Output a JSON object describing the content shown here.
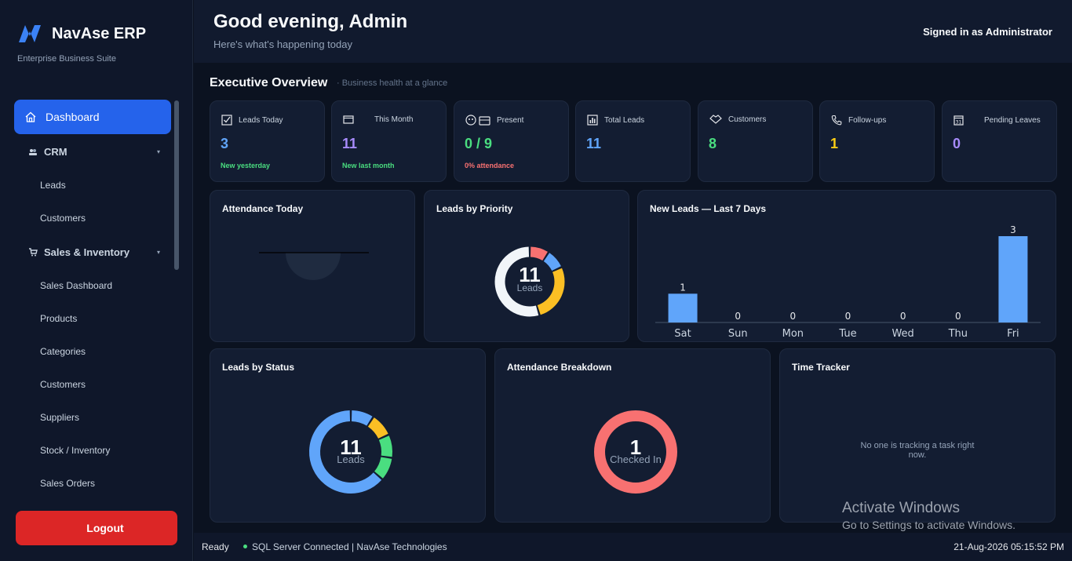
{
  "sidebar": {
    "brand_name": "NavAse ERP",
    "brand_sub": "Enterprise Business Suite",
    "active_item": "Dashboard",
    "crm": {
      "label": "CRM",
      "items": [
        "Leads",
        "Customers"
      ]
    },
    "sales": {
      "label": "Sales & Inventory",
      "items": [
        "Sales Dashboard",
        "Products",
        "Categories",
        "Customers",
        "Suppliers",
        "Stock / Inventory",
        "Sales Orders"
      ]
    },
    "logout_icon": "",
    "logout_label": "Logout"
  },
  "header": {
    "greeting": "Good evening, Admin",
    "subtitle": "Here's what's happening today",
    "signed_in": "Signed in as Administrator"
  },
  "overview": {
    "title": "Executive Overview",
    "subtitle": "· Business health at a glance"
  },
  "kpis": [
    {
      "icon": "checkbox-icon",
      "label": "Leads Today",
      "value": "3",
      "color": "#60a5fa",
      "sub": "New yesterday",
      "sub_color": "#4ade80"
    },
    {
      "icon": "calendar-icon",
      "label": "This Month",
      "value": "11",
      "color": "#a78bfa",
      "sub": "New last month",
      "sub_color": "#4ade80"
    },
    {
      "icon": "people-briefcase-icon",
      "label": "Present",
      "value": "0 / 9",
      "color": "#4ade80",
      "sub": "0% attendance",
      "sub_color": "#f87171"
    },
    {
      "icon": "bar-chart-icon",
      "label": "Total Leads",
      "value": "11",
      "color": "#60a5fa",
      "sub": "",
      "sub_color": ""
    },
    {
      "icon": "handshake-icon",
      "label": "Customers",
      "value": "8",
      "color": "#4ade80",
      "sub": "",
      "sub_color": ""
    },
    {
      "icon": "phone-icon",
      "label": "Follow-ups",
      "value": "1",
      "color": "#facc15",
      "sub": "",
      "sub_color": ""
    },
    {
      "icon": "calendar-31-icon",
      "label": "Pending Leaves",
      "value": "0",
      "color": "#a78bfa",
      "sub": "",
      "sub_color": ""
    }
  ],
  "cards": {
    "attendance_today": "Attendance Today",
    "leads_priority": "Leads by Priority",
    "new_leads": "New Leads — Last 7 Days",
    "leads_status": "Leads by Status",
    "attendance_breakdown": "Attendance Breakdown",
    "time_tracker": "Time Tracker",
    "time_tracker_empty": "No one is tracking a task right now."
  },
  "donuts": {
    "priority": {
      "center_value": "11",
      "center_label": "Leads"
    },
    "status": {
      "center_value": "11",
      "center_label": "Leads"
    },
    "attendance": {
      "center_value": "1",
      "center_label": "Checked In"
    }
  },
  "chart_data": [
    {
      "type": "bar",
      "title": "New Leads — Last 7 Days",
      "categories": [
        "Sat",
        "Sun",
        "Mon",
        "Tue",
        "Wed",
        "Thu",
        "Fri"
      ],
      "values": [
        1,
        0,
        0,
        0,
        0,
        0,
        3
      ],
      "color": "#60a5fa"
    },
    {
      "type": "pie",
      "title": "Leads by Priority",
      "segments": [
        {
          "value": 1,
          "color": "#f87171"
        },
        {
          "value": 1,
          "color": "#60a5fa"
        },
        {
          "value": 3,
          "color": "#fbbf24"
        },
        {
          "value": 6,
          "color": "#f1f5f9"
        }
      ]
    },
    {
      "type": "pie",
      "title": "Leads by Status",
      "segments": [
        {
          "value": 1,
          "color": "#60a5fa"
        },
        {
          "value": 1,
          "color": "#fbbf24"
        },
        {
          "value": 1,
          "color": "#4ade80"
        },
        {
          "value": 1,
          "color": "#4ade80"
        },
        {
          "value": 7,
          "color": "#60a5fa"
        }
      ]
    },
    {
      "type": "pie",
      "title": "Attendance Breakdown",
      "segments": [
        {
          "value": 1,
          "color": "#f87171"
        }
      ]
    }
  ],
  "statusbar": {
    "ready": "Ready",
    "connection": "SQL Server Connected  |  NavAse Technologies",
    "datetime": "21-Aug-2026    05:15:52 PM"
  },
  "watermark": {
    "line1": "Activate Windows",
    "line2": "Go to Settings to activate Windows."
  }
}
